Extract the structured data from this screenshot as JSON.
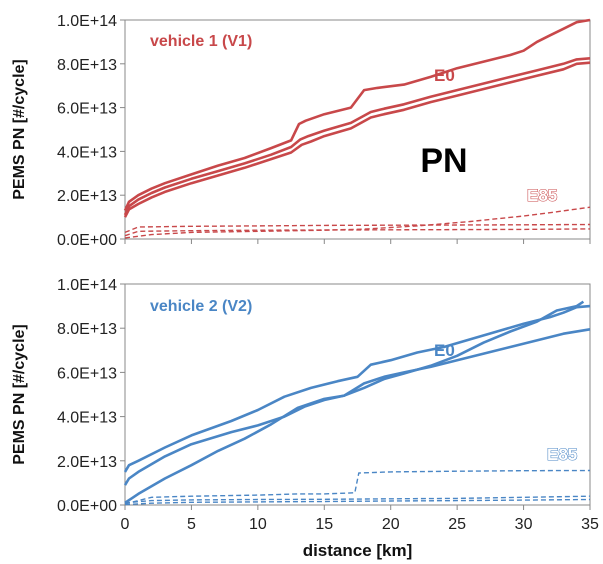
{
  "chart_data": [
    {
      "type": "line",
      "panel_label": "vehicle 1 (V1)",
      "center_label": "PN",
      "ylabel": "PEMS PN  [#/cycle]",
      "xlim": [
        0,
        35
      ],
      "ylim": [
        0,
        100000000000000.0
      ],
      "yticks": [
        "0.0E+00",
        "2.0E+13",
        "4.0E+13",
        "6.0E+13",
        "8.0E+13",
        "1.0E+14"
      ],
      "color": "#c8484a",
      "annotations": {
        "e0": "E0",
        "e85": "E85"
      },
      "series": [
        {
          "style": "solid",
          "x": [
            0,
            0.3,
            1,
            2,
            3,
            5,
            7,
            9,
            11,
            12.5,
            13.1,
            13.6,
            15,
            17,
            18,
            19,
            21,
            23,
            25,
            27,
            29,
            30,
            31,
            32,
            33,
            34,
            35
          ],
          "values": [
            13000000000000.0,
            17000000000000.0,
            20000000000000.0,
            23000000000000.0,
            25500000000000.0,
            29500000000000.0,
            33500000000000.0,
            37000000000000.0,
            41500000000000.0,
            45000000000000.0,
            52500000000000.0,
            54000000000000.0,
            57000000000000.0,
            60000000000000.0,
            68000000000000.0,
            69000000000000.0,
            70500000000000.0,
            74000000000000.0,
            78000000000000.0,
            81000000000000.0,
            84000000000000.0,
            86000000000000.0,
            90000000000000.0,
            93000000000000.0,
            96000000000000.0,
            99000000000000.0,
            100000000000000.0
          ]
        },
        {
          "style": "solid",
          "x": [
            0,
            0.3,
            1,
            2,
            3,
            5,
            7,
            9,
            11,
            12.5,
            13.2,
            13.8,
            15,
            17,
            18.5,
            19.5,
            21,
            23,
            25,
            27,
            29,
            31,
            33,
            34,
            35
          ],
          "values": [
            11000000000000.0,
            15000000000000.0,
            18000000000000.0,
            21000000000000.0,
            23500000000000.0,
            27500000000000.0,
            31000000000000.0,
            34500000000000.0,
            38500000000000.0,
            42000000000000.0,
            45500000000000.0,
            47000000000000.0,
            49500000000000.0,
            53000000000000.0,
            58000000000000.0,
            59500000000000.0,
            61500000000000.0,
            65000000000000.0,
            68000000000000.0,
            71000000000000.0,
            74000000000000.0,
            77000000000000.0,
            80000000000000.0,
            82000000000000.0,
            82500000000000.0
          ]
        },
        {
          "style": "solid",
          "x": [
            0,
            0.3,
            1,
            2,
            3,
            5,
            7,
            9,
            11,
            12.5,
            13.3,
            14,
            15,
            17,
            18.5,
            19.5,
            21,
            23,
            25,
            27,
            29,
            31,
            33,
            34,
            35
          ],
          "values": [
            10000000000000.0,
            13500000000000.0,
            16000000000000.0,
            19000000000000.0,
            21500000000000.0,
            25500000000000.0,
            29000000000000.0,
            32500000000000.0,
            36500000000000.0,
            39500000000000.0,
            43000000000000.0,
            44500000000000.0,
            47000000000000.0,
            50500000000000.0,
            55500000000000.0,
            57000000000000.0,
            59000000000000.0,
            62500000000000.0,
            65500000000000.0,
            68500000000000.0,
            71500000000000.0,
            74500000000000.0,
            77500000000000.0,
            80000000000000.0,
            80500000000000.0
          ]
        },
        {
          "style": "dashed",
          "x": [
            0,
            2,
            5,
            10,
            15,
            18,
            22,
            26,
            30,
            32,
            35
          ],
          "values": [
            500000000000.0,
            2000000000000.0,
            3000000000000.0,
            3500000000000.0,
            4000000000000.0,
            4500000000000.0,
            6000000000000.0,
            8000000000000.0,
            10500000000000.0,
            12000000000000.0,
            14500000000000.0
          ]
        },
        {
          "style": "dashed",
          "x": [
            0,
            1,
            5,
            10,
            15,
            20,
            25,
            30,
            35
          ],
          "values": [
            3000000000000.0,
            5500000000000.0,
            5800000000000.0,
            6000000000000.0,
            6200000000000.0,
            6300000000000.0,
            6400000000000.0,
            6500000000000.0,
            6600000000000.0
          ]
        },
        {
          "style": "dashed",
          "x": [
            0,
            1,
            5,
            10,
            15,
            20,
            25,
            30,
            35
          ],
          "values": [
            1500000000000.0,
            3500000000000.0,
            3800000000000.0,
            4000000000000.0,
            4100000000000.0,
            4200000000000.0,
            4300000000000.0,
            4400000000000.0,
            4600000000000.0
          ]
        }
      ]
    },
    {
      "type": "line",
      "panel_label": "vehicle 2 (V2)",
      "ylabel": "PEMS PN  [#/cycle]",
      "xlabel": "distance [km]",
      "xlim": [
        0,
        35
      ],
      "xticks": [
        "0",
        "5",
        "10",
        "15",
        "20",
        "25",
        "30",
        "35"
      ],
      "ylim": [
        0,
        100000000000000.0
      ],
      "yticks": [
        "0.0E+00",
        "2.0E+13",
        "4.0E+13",
        "6.0E+13",
        "8.0E+13",
        "1.0E+14"
      ],
      "color": "#4a86c5",
      "annotations": {
        "e0": "E0",
        "e85": "E85"
      },
      "series": [
        {
          "style": "solid",
          "x": [
            0,
            0.3,
            1,
            3,
            5,
            8,
            10,
            12,
            14,
            16,
            17.5,
            18.5,
            20,
            22,
            24,
            26,
            28,
            30,
            32,
            33,
            34,
            35
          ],
          "values": [
            15000000000000.0,
            18000000000000.0,
            20000000000000.0,
            26000000000000.0,
            31500000000000.0,
            38000000000000.0,
            43000000000000.0,
            49000000000000.0,
            53000000000000.0,
            56000000000000.0,
            58000000000000.0,
            63500000000000.0,
            65500000000000.0,
            69000000000000.0,
            71500000000000.0,
            75000000000000.0,
            78500000000000.0,
            82000000000000.0,
            85000000000000.0,
            87000000000000.0,
            89500000000000.0,
            90000000000000.0
          ]
        },
        {
          "style": "solid",
          "x": [
            0,
            0.3,
            1,
            3,
            5,
            8,
            10,
            12,
            13.5,
            15,
            16.5,
            18,
            19.5,
            21,
            23,
            25,
            27,
            29,
            31,
            32.5,
            34,
            34.5
          ],
          "values": [
            9000000000000.0,
            12000000000000.0,
            15000000000000.0,
            22000000000000.0,
            27500000000000.0,
            33000000000000.0,
            36000000000000.0,
            40000000000000.0,
            44500000000000.0,
            47500000000000.0,
            49500000000000.0,
            53000000000000.0,
            57000000000000.0,
            59500000000000.0,
            63000000000000.0,
            67500000000000.0,
            73500000000000.0,
            78500000000000.0,
            83000000000000.0,
            88000000000000.0,
            90000000000000.0,
            92000000000000.0
          ]
        },
        {
          "style": "solid",
          "x": [
            0,
            0.5,
            1,
            3,
            5,
            7,
            9,
            11,
            13,
            15,
            16.5,
            18,
            19.5,
            21,
            23,
            25,
            27,
            29,
            31,
            33,
            35
          ],
          "values": [
            1000000000000.0,
            3000000000000.0,
            5000000000000.0,
            12000000000000.0,
            18000000000000.0,
            24500000000000.0,
            30000000000000.0,
            36500000000000.0,
            44000000000000.0,
            48000000000000.0,
            49500000000000.0,
            55000000000000.0,
            58000000000000.0,
            60000000000000.0,
            62500000000000.0,
            65500000000000.0,
            68500000000000.0,
            71500000000000.0,
            74500000000000.0,
            77500000000000.0,
            79500000000000.0
          ]
        },
        {
          "style": "dashed",
          "x": [
            0,
            2,
            5,
            10,
            13,
            15,
            17.3,
            17.6,
            20,
            25,
            30,
            35
          ],
          "values": [
            500000000000.0,
            3500000000000.0,
            4000000000000.0,
            4500000000000.0,
            5000000000000.0,
            5000000000000.0,
            5500000000000.0,
            14500000000000.0,
            15000000000000.0,
            15300000000000.0,
            15500000000000.0,
            15600000000000.0
          ]
        },
        {
          "style": "dashed",
          "x": [
            0,
            2,
            5,
            10,
            15,
            20,
            25,
            30,
            35
          ],
          "values": [
            1000000000000.0,
            2000000000000.0,
            2300000000000.0,
            2500000000000.0,
            2600000000000.0,
            2800000000000.0,
            3000000000000.0,
            3500000000000.0,
            4000000000000.0
          ]
        },
        {
          "style": "dashed",
          "x": [
            0,
            2,
            5,
            10,
            15,
            20,
            25,
            30,
            35
          ],
          "values": [
            200000000000.0,
            800000000000.0,
            1200000000000.0,
            1400000000000.0,
            1600000000000.0,
            1800000000000.0,
            2000000000000.0,
            2200000000000.0,
            2500000000000.0
          ]
        }
      ]
    }
  ]
}
